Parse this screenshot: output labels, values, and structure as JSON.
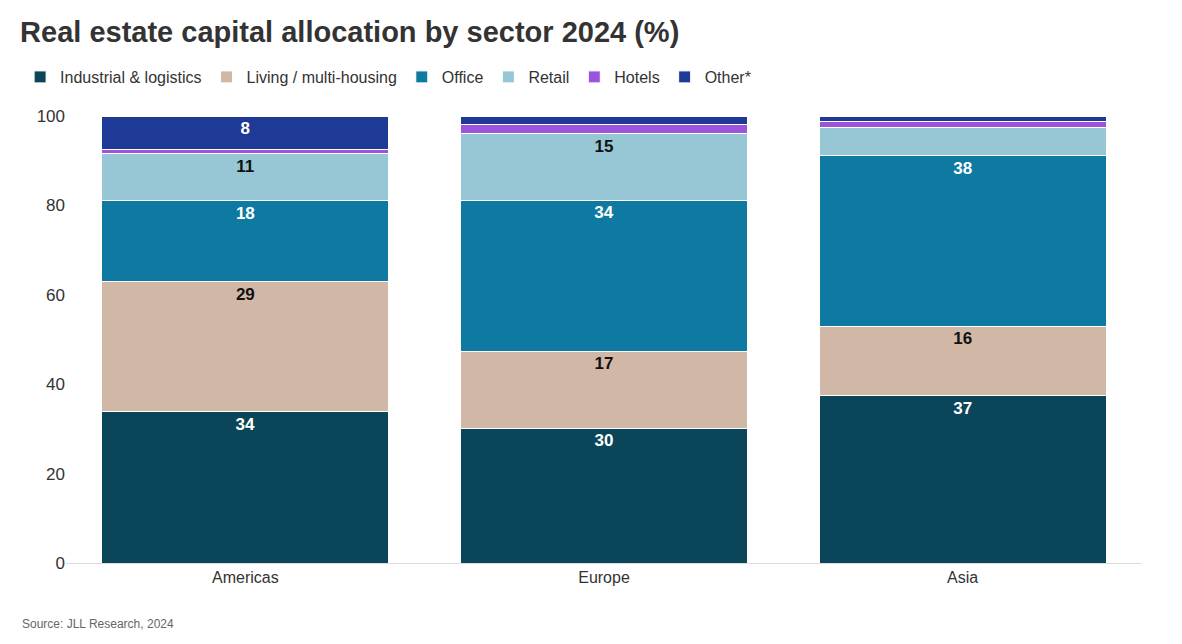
{
  "chart_data": {
    "type": "bar",
    "title": "Real estate capital allocation by sector 2024 (%)",
    "source": "Source: JLL Research, 2024",
    "categories": [
      "Americas",
      "Europe",
      "Asia"
    ],
    "stacked": true,
    "data_labels": true,
    "grid": false,
    "legend": "top-left",
    "ylim": [
      0,
      100
    ],
    "yticks": [
      0,
      20,
      40,
      60,
      80,
      100
    ],
    "series": [
      {
        "name": "Industrial & logistics",
        "color": "#0b4559",
        "values": [
          33.8,
          30.2,
          37.4
        ],
        "value_labels": [
          "34",
          "30",
          "37"
        ]
      },
      {
        "name": "Living / multi-housing",
        "color": "#d1b8a6",
        "values": [
          29.1,
          17.2,
          15.6
        ],
        "value_labels": [
          "29",
          "17",
          "16"
        ]
      },
      {
        "name": "Office",
        "color": "#0e7aa1",
        "values": [
          18.1,
          33.8,
          38.1
        ],
        "value_labels": [
          "18",
          "34",
          "38"
        ]
      },
      {
        "name": "Retail",
        "color": "#97c6d5",
        "values": [
          10.6,
          14.8,
          6.4
        ],
        "value_labels": [
          "11",
          "15",
          null
        ]
      },
      {
        "name": "Hotels",
        "color": "#9b55dd",
        "values": [
          0.8,
          2.0,
          1.2
        ],
        "value_labels": [
          null,
          null,
          null
        ]
      },
      {
        "name": "Other*",
        "color": "#1f3996",
        "values": [
          7.6,
          2.0,
          1.3
        ],
        "value_labels": [
          "8",
          null,
          null
        ]
      }
    ]
  }
}
